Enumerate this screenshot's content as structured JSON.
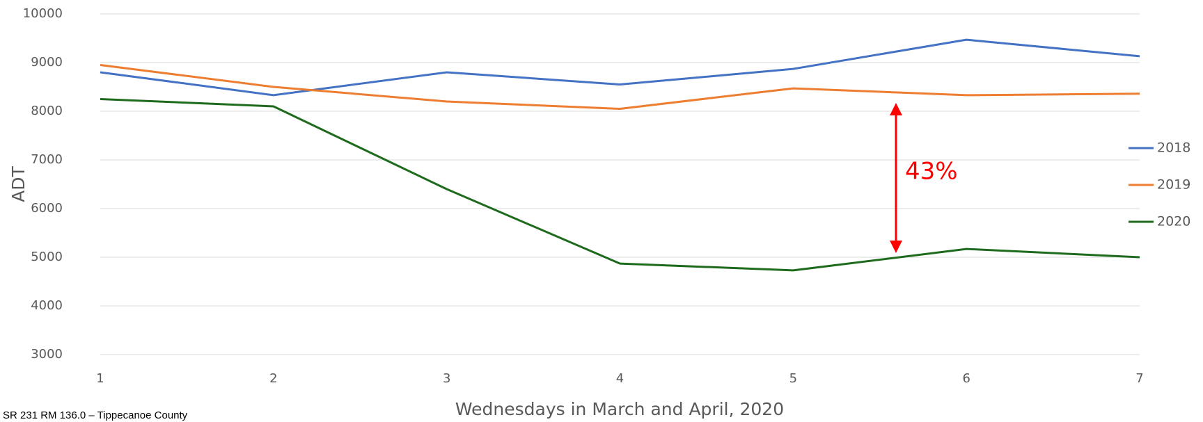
{
  "chart_data": {
    "type": "line",
    "x": [
      1,
      2,
      3,
      4,
      5,
      6,
      7
    ],
    "series": [
      {
        "name": "2018",
        "color": "#4472c4",
        "values": [
          8800,
          8330,
          8800,
          8550,
          8870,
          9470,
          9130
        ]
      },
      {
        "name": "2019",
        "color": "#ed7d31",
        "values": [
          8950,
          8500,
          8200,
          8050,
          8470,
          8330,
          8360
        ]
      },
      {
        "name": "2020",
        "color": "#1e6b1e",
        "values": [
          8250,
          8100,
          6400,
          4870,
          4730,
          5170,
          5000
        ]
      }
    ],
    "xlim": [
      1,
      7
    ],
    "xticks": [
      1,
      2,
      3,
      4,
      5,
      6,
      7
    ],
    "ylim": [
      3000,
      10000
    ],
    "yticks": [
      3000,
      4000,
      5000,
      6000,
      7000,
      8000,
      9000,
      10000
    ],
    "xlabel": "Wednesdays in March and April, 2020",
    "ylabel": "ADT",
    "annotation": "43%",
    "footnote": "SR 231 RM 136.0 – Tippecanoe County",
    "grid": true,
    "legend": "right"
  }
}
